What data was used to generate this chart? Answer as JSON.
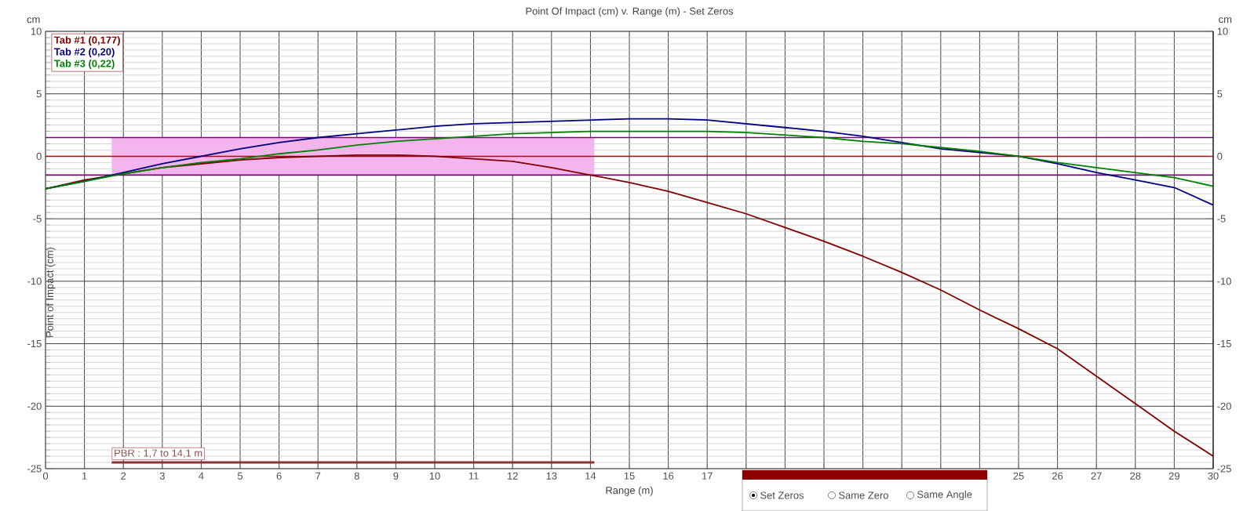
{
  "chart_data": {
    "type": "line",
    "title": "Point Of Impact (cm) v. Range (m) - Set Zeros",
    "xlabel": "Range (m)",
    "ylabel": "Point of Impact (cm)",
    "y2label": "cm",
    "annotations": [
      "cm",
      "PBR : 1,7 to 14,1 m",
      "Set Zeros",
      "Same Zero",
      "Same Angle"
    ],
    "x": [
      0,
      1,
      2,
      3,
      4,
      5,
      6,
      7,
      8,
      9,
      10,
      11,
      12,
      13,
      14,
      15,
      16,
      17,
      18,
      19,
      20,
      21,
      22,
      23,
      24,
      25,
      26,
      27,
      28,
      29,
      30
    ],
    "series": [
      {
        "name": "Tab #1 (0,177)",
        "color": "#800000",
        "values": [
          -2.6,
          -1.9,
          -1.4,
          -0.9,
          -0.6,
          -0.3,
          -0.1,
          0.0,
          0.1,
          0.1,
          0.0,
          -0.2,
          -0.4,
          -0.9,
          -1.5,
          -2.1,
          -2.8,
          -3.7,
          -4.6,
          -5.7,
          -6.8,
          -8.0,
          -9.3,
          -10.7,
          -12.3,
          -13.8,
          -15.4,
          -17.6,
          -19.8,
          -22.0,
          -24.0
        ]
      },
      {
        "name": "Tab #2 (0,20)",
        "color": "#000080",
        "values": [
          -2.6,
          -2.0,
          -1.3,
          -0.6,
          0.0,
          0.6,
          1.1,
          1.5,
          1.8,
          2.1,
          2.4,
          2.6,
          2.7,
          2.8,
          2.9,
          3.0,
          3.0,
          2.9,
          2.6,
          2.3,
          2.0,
          1.6,
          1.1,
          0.6,
          0.3,
          0.0,
          -0.6,
          -1.3,
          -1.9,
          -2.5,
          -3.9
        ]
      },
      {
        "name": "Tab #3 (0,22)",
        "color": "#008000",
        "values": [
          -2.6,
          -2.0,
          -1.4,
          -0.9,
          -0.5,
          -0.2,
          0.2,
          0.5,
          0.9,
          1.2,
          1.4,
          1.6,
          1.8,
          1.9,
          2.0,
          2.0,
          2.0,
          2.0,
          1.9,
          1.7,
          1.5,
          1.2,
          1.0,
          0.7,
          0.4,
          0.0,
          -0.5,
          -0.9,
          -1.3,
          -1.7,
          -2.4
        ]
      }
    ],
    "xlim": [
      0,
      30
    ],
    "xticks": [
      0,
      1,
      2,
      3,
      4,
      5,
      6,
      7,
      8,
      9,
      10,
      11,
      12,
      13,
      14,
      15,
      16,
      17,
      {
        "value": 18,
        "label": null
      },
      {
        "value": 19,
        "label": null
      },
      {
        "value": 20,
        "label": null
      },
      {
        "value": 21,
        "label": null
      },
      {
        "value": 22,
        "label": null
      },
      {
        "value": 23,
        "label": null
      },
      {
        "value": 24,
        "label": null
      },
      25,
      26,
      27,
      28,
      29,
      30
    ],
    "ylim": [
      -25,
      10
    ],
    "yticks": [
      -25,
      -20,
      -15,
      -10,
      -5,
      0,
      5,
      10
    ],
    "y2lim": [
      -25,
      10
    ],
    "y2ticks": [
      -25,
      -20,
      -15,
      -10,
      -5,
      0,
      5,
      10
    ],
    "ref_lines": [
      {
        "axis": "y",
        "value": 1.5,
        "color": "#800080"
      },
      {
        "axis": "y",
        "value": -1.5,
        "color": "#800080"
      },
      {
        "axis": "y",
        "value": 0,
        "color": "#c00000"
      }
    ],
    "bands": [
      {
        "axis": "x",
        "from": 1.7,
        "to": 14.1,
        "color": "#f4b4ee"
      }
    ],
    "grid": true,
    "legend": "top left",
    "line_style": "solid"
  }
}
